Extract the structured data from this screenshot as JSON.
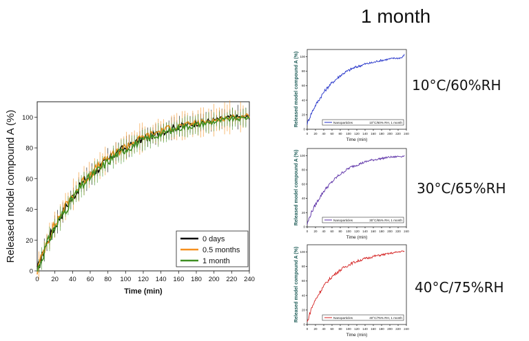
{
  "header": {
    "title": "1 month"
  },
  "conditions": [
    "10°C/60%RH",
    "30°C/65%RH",
    "40°C/75%RH"
  ],
  "chart_data": [
    {
      "type": "line",
      "xlabel": "Time (min)",
      "ylabel": "Released model compound A (%)",
      "xlim": [
        0,
        240
      ],
      "ylim": [
        0,
        110
      ],
      "x_ticks": [
        0,
        10,
        20,
        30,
        40,
        50,
        60,
        70,
        80,
        90,
        100,
        110,
        120,
        130,
        140,
        150,
        160,
        170,
        180,
        190,
        200,
        210,
        220,
        230,
        240
      ],
      "x_tick_labels": [
        "0",
        "20",
        "40",
        "60",
        "80",
        "100",
        "120",
        "140",
        "160",
        "180",
        "200",
        "220",
        "240"
      ],
      "y_tick_labels": [
        "0",
        "20",
        "40",
        "60",
        "80",
        "100"
      ],
      "legend_position": "bottom-right",
      "x": [
        0,
        10,
        20,
        30,
        40,
        50,
        60,
        70,
        80,
        90,
        100,
        110,
        120,
        130,
        140,
        150,
        160,
        170,
        180,
        190,
        200,
        210,
        220,
        230,
        240
      ],
      "series": [
        {
          "name": "0 days",
          "color": "#000000",
          "values": [
            0,
            17,
            29,
            39,
            48,
            56,
            62,
            67,
            72,
            77,
            80,
            83,
            86,
            88,
            90,
            92,
            94,
            95,
            96,
            97,
            98,
            99,
            100,
            100,
            100
          ]
        },
        {
          "name": "0.5 months",
          "color": "#f5901e",
          "values": [
            0,
            18,
            30,
            40,
            49,
            57,
            63,
            68,
            73,
            77,
            81,
            84,
            87,
            89,
            91,
            93,
            94,
            95,
            96,
            97,
            98,
            99,
            100,
            100,
            101
          ]
        },
        {
          "name": "1 month",
          "color": "#3f8f22",
          "values": [
            0,
            16,
            28,
            38,
            47,
            55,
            61,
            66,
            71,
            76,
            79,
            82,
            85,
            87,
            89,
            91,
            93,
            94,
            95,
            96,
            97,
            98,
            99,
            99,
            100
          ]
        }
      ]
    },
    {
      "type": "line",
      "ylabel": "Released model compound A (%)",
      "xlabel": "Time (min)",
      "xlim": [
        0,
        240
      ],
      "ylim": [
        0,
        110
      ],
      "x_tick_labels": [
        "0",
        "20",
        "40",
        "60",
        "80",
        "100",
        "120",
        "140",
        "160",
        "180",
        "200",
        "220",
        "240"
      ],
      "y_tick_labels": [
        "0",
        "20",
        "40",
        "60",
        "80",
        "100"
      ],
      "legend_text": "10°C/60% RH, 1 month",
      "series": [
        {
          "name": "Nanoparticles",
          "color": "#1f2ec8",
          "x": [
            0,
            10,
            20,
            30,
            40,
            50,
            60,
            70,
            80,
            90,
            100,
            110,
            120,
            130,
            140,
            150,
            160,
            170,
            180,
            190,
            200,
            210,
            220,
            230,
            235
          ],
          "values": [
            8,
            22,
            33,
            42,
            51,
            58,
            64,
            69,
            74,
            78,
            81,
            84,
            86,
            88,
            90,
            91,
            92,
            94,
            95,
            96,
            97,
            98,
            98,
            99,
            103
          ]
        }
      ]
    },
    {
      "type": "line",
      "ylabel": "Released model compound A (%)",
      "xlabel": "Time (min)",
      "xlim": [
        0,
        240
      ],
      "ylim": [
        0,
        110
      ],
      "x_tick_labels": [
        "0",
        "20",
        "40",
        "60",
        "80",
        "100",
        "120",
        "140",
        "160",
        "180",
        "200",
        "220",
        "240"
      ],
      "y_tick_labels": [
        "0",
        "20",
        "40",
        "60",
        "80",
        "100"
      ],
      "legend_text": "30°C/65% RH, 1 month",
      "series": [
        {
          "name": "Nanoparticles",
          "color": "#5a2ea6",
          "x": [
            0,
            10,
            20,
            30,
            40,
            50,
            60,
            70,
            80,
            90,
            100,
            110,
            120,
            130,
            140,
            150,
            160,
            170,
            180,
            190,
            200,
            210,
            220,
            230,
            235
          ],
          "values": [
            4,
            20,
            31,
            41,
            50,
            57,
            63,
            69,
            74,
            78,
            82,
            85,
            87,
            89,
            91,
            93,
            94,
            95,
            96,
            97,
            98,
            98,
            99,
            99,
            100
          ]
        }
      ]
    },
    {
      "type": "line",
      "ylabel": "Released model compound A (%)",
      "xlabel": "Time (min)",
      "xlim": [
        0,
        240
      ],
      "ylim": [
        0,
        110
      ],
      "x_tick_labels": [
        "0",
        "20",
        "40",
        "60",
        "80",
        "100",
        "120",
        "140",
        "160",
        "180",
        "200",
        "220",
        "240"
      ],
      "y_tick_labels": [
        "0",
        "20",
        "40",
        "60",
        "80",
        "100"
      ],
      "legend_text": "40°C/75% RH, 1 month",
      "series": [
        {
          "name": "Nanoparticles",
          "color": "#d42020",
          "x": [
            0,
            10,
            20,
            30,
            40,
            50,
            60,
            70,
            80,
            90,
            100,
            110,
            120,
            130,
            140,
            150,
            160,
            170,
            180,
            190,
            200,
            210,
            220,
            230,
            235
          ],
          "values": [
            3,
            22,
            34,
            44,
            53,
            60,
            66,
            71,
            75,
            79,
            82,
            85,
            87,
            89,
            91,
            92,
            94,
            95,
            96,
            97,
            98,
            99,
            100,
            101,
            101
          ]
        }
      ]
    }
  ]
}
